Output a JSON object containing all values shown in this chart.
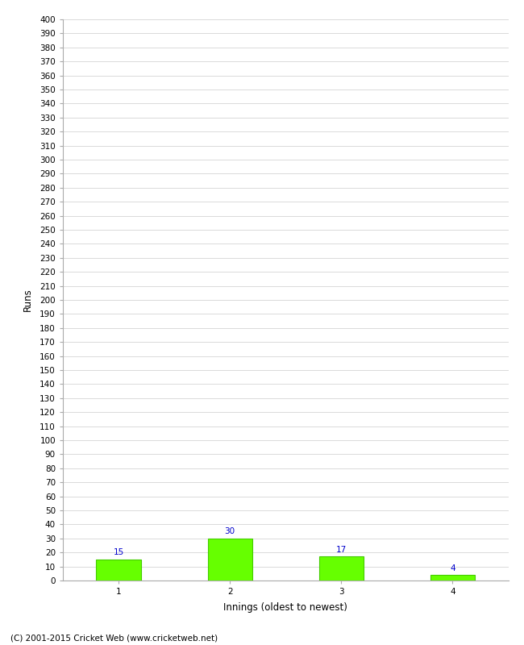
{
  "categories": [
    "1",
    "2",
    "3",
    "4"
  ],
  "values": [
    15,
    30,
    17,
    4
  ],
  "bar_color": "#66ff00",
  "bar_edge_color": "#44cc00",
  "xlabel": "Innings (oldest to newest)",
  "ylabel": "Runs",
  "ylim": [
    0,
    400
  ],
  "ytick_step": 10,
  "value_label_color": "#0000cc",
  "value_label_fontsize": 7.5,
  "axis_label_fontsize": 8.5,
  "tick_fontsize": 7.5,
  "footer_text": "(C) 2001-2015 Cricket Web (www.cricketweb.net)",
  "footer_fontsize": 7.5,
  "background_color": "#ffffff",
  "grid_color": "#cccccc",
  "bar_width": 0.4
}
